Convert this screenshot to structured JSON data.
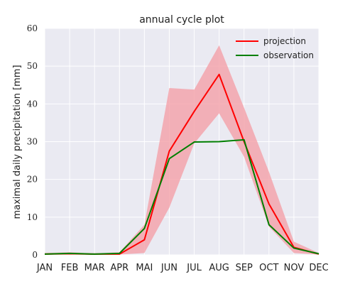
{
  "chart_data": {
    "type": "line",
    "title": "annual cycle plot",
    "xlabel": "",
    "ylabel": "maximal daily precipitation [mm]",
    "categories": [
      "JAN",
      "FEB",
      "MAR",
      "APR",
      "MAI",
      "JUN",
      "JUL",
      "AUG",
      "SEP",
      "OCT",
      "NOV",
      "DEC"
    ],
    "ylim": [
      0,
      60
    ],
    "yticks": [
      0,
      10,
      20,
      30,
      40,
      50,
      60
    ],
    "grid": true,
    "legend_position": "top-right",
    "series": [
      {
        "name": "projection",
        "color": "#ff0000",
        "values": [
          0.2,
          0.3,
          0.2,
          0.2,
          4.0,
          27.5,
          38.0,
          47.8,
          30.0,
          13.5,
          2.0,
          0.2
        ]
      },
      {
        "name": "observation",
        "color": "#007f00",
        "values": [
          0.2,
          0.4,
          0.2,
          0.4,
          7.0,
          25.5,
          29.9,
          30.0,
          30.5,
          8.0,
          1.8,
          0.3
        ]
      }
    ],
    "band": {
      "series": "projection",
      "color": "#f4a0a8",
      "lower": [
        0.1,
        0.2,
        0.1,
        0.1,
        0.5,
        12.5,
        29.5,
        37.5,
        26.0,
        7.5,
        0.5,
        0.1
      ],
      "upper": [
        0.5,
        0.7,
        0.4,
        0.7,
        8.0,
        44.2,
        43.8,
        55.5,
        39.0,
        22.0,
        3.5,
        0.5
      ]
    }
  },
  "colors": {
    "plot_bg": "#eaeaf2",
    "grid": "#ffffff"
  }
}
